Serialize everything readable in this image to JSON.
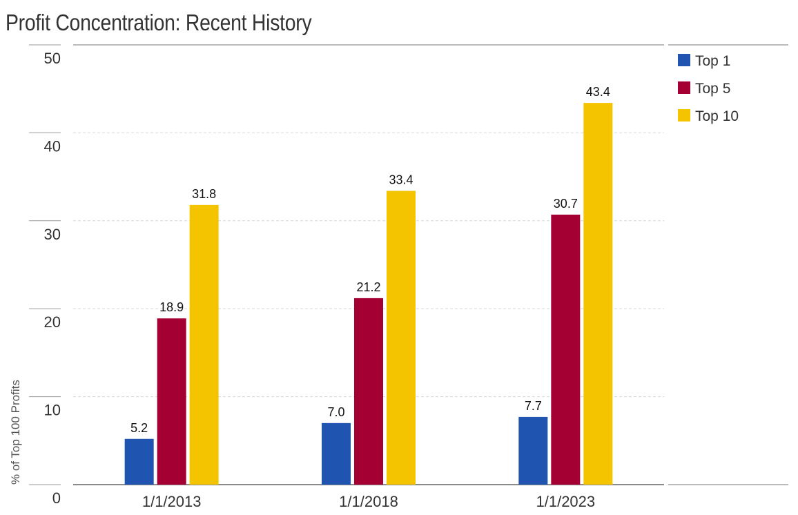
{
  "chart_data": {
    "type": "bar",
    "title": "Profit Concentration: Recent History",
    "ylabel": "% of Top 100 Profits",
    "xlabel": "",
    "categories": [
      "1/1/2013",
      "1/1/2018",
      "1/1/2023"
    ],
    "series": [
      {
        "name": "Top 1",
        "color": "#1f54b0",
        "values": [
          5.2,
          7.0,
          7.7
        ]
      },
      {
        "name": "Top 5",
        "color": "#a50034",
        "values": [
          18.9,
          21.2,
          30.7
        ]
      },
      {
        "name": "Top 10",
        "color": "#f5c400",
        "values": [
          31.8,
          33.4,
          43.4
        ]
      }
    ],
    "ylim": [
      0,
      50
    ],
    "yticks": [
      0,
      10,
      20,
      30,
      40,
      50
    ],
    "data_label_format": "one-decimal",
    "grid": true,
    "legend": "right"
  }
}
